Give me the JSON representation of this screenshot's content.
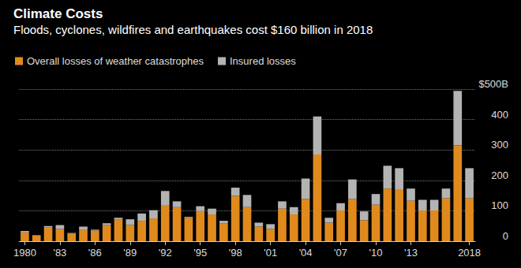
{
  "chart_data": {
    "type": "bar",
    "title": "Climate Costs",
    "subtitle": "Floods, cyclones, wildfires and earthquakes cost $160 billion in 2018",
    "categories": [
      "1980",
      null,
      null,
      "'83",
      null,
      null,
      "'86",
      null,
      null,
      "'89",
      null,
      null,
      "'92",
      null,
      null,
      "'95",
      null,
      null,
      "'98",
      null,
      null,
      "'01",
      null,
      null,
      "'04",
      null,
      null,
      "'07",
      null,
      null,
      "'10",
      null,
      null,
      "'13",
      null,
      null,
      null,
      null,
      "2018"
    ],
    "series": [
      {
        "name": "Overall losses of weather catastrophes",
        "color": "#e08a1e",
        "values": [
          29,
          19,
          45,
          40,
          24,
          37,
          35,
          53,
          72,
          53,
          67,
          75,
          117,
          112,
          77,
          99,
          88,
          59,
          149,
          112,
          48,
          40,
          107,
          88,
          139,
          285,
          61,
          101,
          139,
          69,
          120,
          173,
          171,
          133,
          101,
          101,
          141,
          315,
          141
        ]
      },
      {
        "name": "Insured losses",
        "color": "#b3b3b3",
        "values": [
          5,
          1,
          5,
          13,
          3,
          11,
          3,
          6,
          5,
          19,
          24,
          27,
          48,
          19,
          3,
          16,
          19,
          8,
          27,
          40,
          13,
          16,
          24,
          24,
          67,
          125,
          16,
          24,
          64,
          29,
          35,
          75,
          69,
          40,
          35,
          35,
          32,
          179,
          99
        ]
      }
    ],
    "ylim": [
      0,
      500
    ],
    "yticks": [
      0,
      100,
      200,
      300,
      400,
      {
        "value": 500,
        "label": "$500B"
      }
    ],
    "stacked": true,
    "grid": true,
    "legend": "top-left"
  }
}
